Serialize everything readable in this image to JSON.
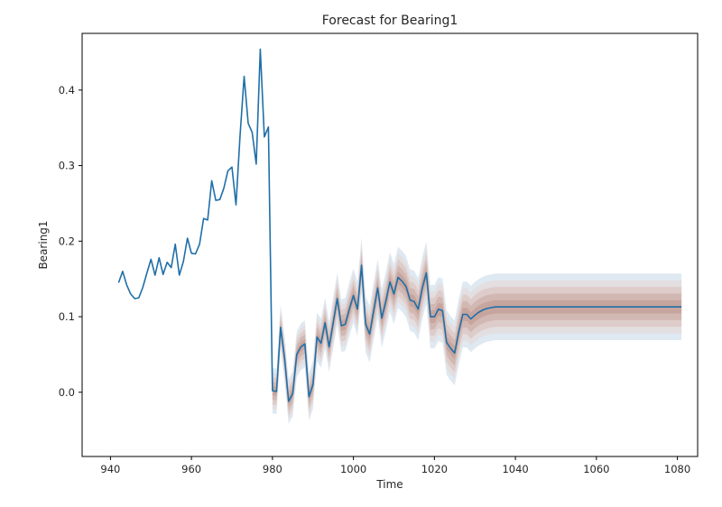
{
  "chart_data": {
    "type": "line",
    "title": "Forecast for Bearing1",
    "xlabel": "Time",
    "ylabel": "Bearing1",
    "xlim": [
      933,
      1085
    ],
    "ylim": [
      -0.085,
      0.475
    ],
    "x_ticks": [
      940,
      960,
      980,
      1000,
      1020,
      1040,
      1060,
      1080
    ],
    "x_tick_labels": [
      "940",
      "960",
      "980",
      "1000",
      "1020",
      "1040",
      "1060",
      "1080"
    ],
    "y_ticks": [
      0.0,
      0.1,
      0.2,
      0.3,
      0.4
    ],
    "y_tick_labels": [
      "0.0",
      "0.1",
      "0.2",
      "0.3",
      "0.4"
    ],
    "grid": false,
    "colors": {
      "line": "#1f6fa8",
      "band_outer": "#dbe7f1",
      "band_inner": "#c9a79e"
    },
    "series": [
      {
        "x": [
          942,
          943,
          944,
          945,
          946,
          947,
          948,
          949,
          950,
          951,
          952,
          953,
          954,
          955,
          956,
          957,
          958,
          959,
          960,
          961,
          962,
          963,
          964,
          965,
          966,
          967,
          968,
          969,
          970,
          971,
          972,
          973,
          974,
          975,
          976,
          977,
          978,
          979,
          980,
          981,
          982,
          983,
          984,
          985,
          986,
          987,
          988,
          989,
          990,
          991,
          992,
          993,
          994,
          995,
          996,
          997,
          998,
          999,
          1000,
          1001,
          1002,
          1003,
          1004,
          1005,
          1006,
          1007,
          1008,
          1009,
          1010,
          1011,
          1012,
          1013,
          1014,
          1015,
          1016,
          1017,
          1018,
          1019,
          1020,
          1021,
          1022,
          1023,
          1024,
          1025,
          1026,
          1027,
          1028,
          1029,
          1030,
          1031,
          1032,
          1033,
          1034,
          1035,
          1036,
          1037,
          1038,
          1039,
          1040,
          1045,
          1050,
          1055,
          1060,
          1065,
          1070,
          1075,
          1080,
          1081
        ],
        "values": [
          0.145,
          0.16,
          0.142,
          0.13,
          0.124,
          0.125,
          0.139,
          0.158,
          0.176,
          0.155,
          0.178,
          0.156,
          0.172,
          0.165,
          0.196,
          0.155,
          0.173,
          0.204,
          0.184,
          0.183,
          0.196,
          0.23,
          0.228,
          0.28,
          0.254,
          0.255,
          0.27,
          0.293,
          0.298,
          0.248,
          0.34,
          0.418,
          0.356,
          0.344,
          0.302,
          0.454,
          0.338,
          0.351,
          0.002,
          0.001,
          0.086,
          0.045,
          -0.012,
          -0.002,
          0.05,
          0.06,
          0.064,
          -0.006,
          0.01,
          0.073,
          0.065,
          0.092,
          0.06,
          0.092,
          0.124,
          0.088,
          0.09,
          0.11,
          0.128,
          0.11,
          0.168,
          0.09,
          0.077,
          0.108,
          0.138,
          0.098,
          0.12,
          0.146,
          0.13,
          0.152,
          0.147,
          0.14,
          0.122,
          0.12,
          0.11,
          0.138,
          0.158,
          0.1,
          0.1,
          0.11,
          0.108,
          0.066,
          0.058,
          0.052,
          0.08,
          0.103,
          0.103,
          0.097,
          0.102,
          0.106,
          0.109,
          0.111,
          0.112,
          0.113,
          0.113,
          0.113,
          0.113,
          0.113,
          0.113,
          0.113,
          0.113,
          0.113,
          0.113,
          0.113,
          0.113,
          0.113,
          0.113,
          0.113
        ]
      }
    ],
    "forecast_band": {
      "x_start": 980,
      "widths": [
        0.03,
        0.03,
        0.032,
        0.034,
        0.036,
        0.038,
        0.04,
        0.041,
        0.042,
        0.043,
        0.044,
        0.044,
        0.044,
        0.044,
        0.044
      ],
      "width_x": [
        980,
        985,
        990,
        995,
        1000,
        1005,
        1010,
        1015,
        1020,
        1025,
        1030,
        1035,
        1040,
        1060,
        1081
      ]
    }
  }
}
